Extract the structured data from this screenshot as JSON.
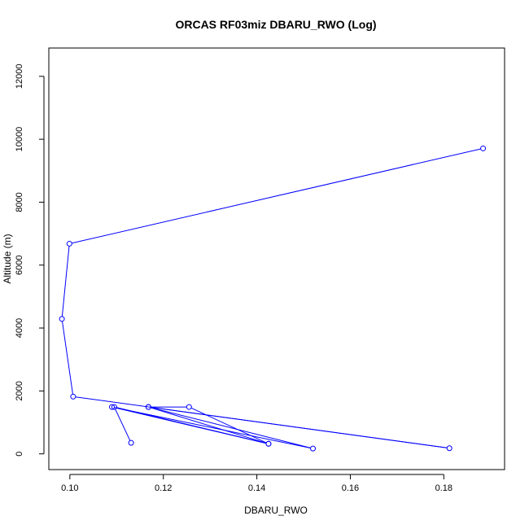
{
  "chart_data": {
    "type": "line",
    "title": "ORCAS RF03miz DBARU_RWO (Log)",
    "xlabel": "DBARU_RWO",
    "ylabel": "Altitude (m)",
    "xlim": [
      0.0955,
      0.193
    ],
    "ylim": [
      -500,
      12900
    ],
    "xticks": [
      "0.10",
      "0.12",
      "0.14",
      "0.16",
      "0.18"
    ],
    "yticks": [
      "0",
      "2000",
      "4000",
      "6000",
      "8000",
      "10000",
      "12000"
    ],
    "grid": false,
    "legend": "none",
    "series_color": "#0000ff",
    "points": [
      {
        "x": 0.1131,
        "y": 350
      },
      {
        "x": 0.1095,
        "y": 1490
      },
      {
        "x": 0.1425,
        "y": 320
      },
      {
        "x": 0.109,
        "y": 1490
      },
      {
        "x": 0.152,
        "y": 170
      },
      {
        "x": 0.1168,
        "y": 1490
      },
      {
        "x": 0.1255,
        "y": 1490
      },
      {
        "x": 0.1425,
        "y": 320
      },
      {
        "x": 0.1168,
        "y": 1490
      },
      {
        "x": 0.1812,
        "y": 180
      },
      {
        "x": 0.1007,
        "y": 1820
      },
      {
        "x": 0.0983,
        "y": 4290
      },
      {
        "x": 0.0999,
        "y": 6680
      },
      {
        "x": 0.1884,
        "y": 9710
      }
    ]
  }
}
